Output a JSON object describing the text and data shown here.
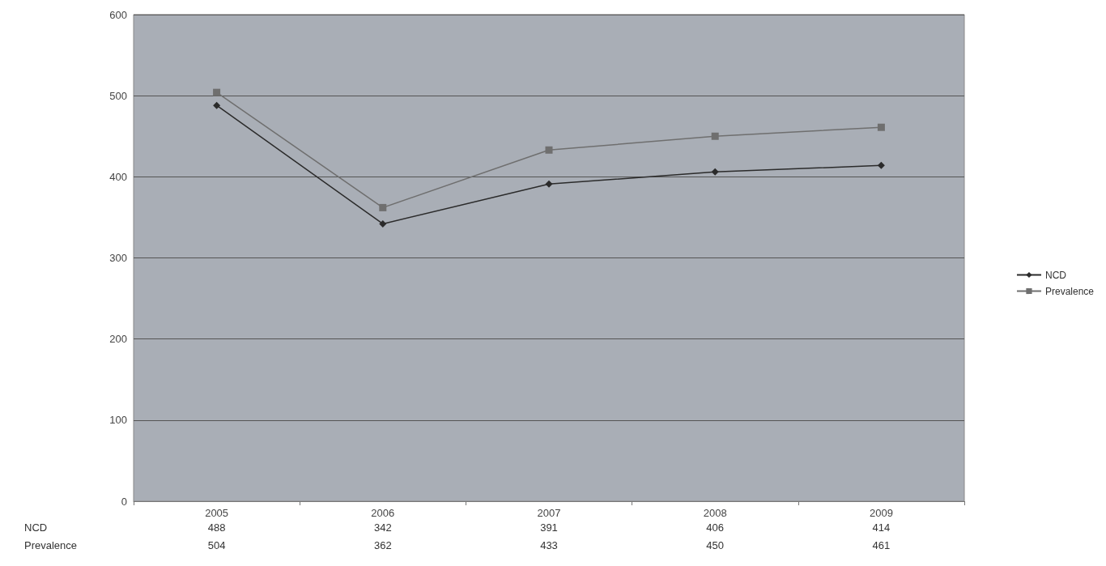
{
  "chart_data": {
    "type": "line",
    "categories": [
      "2005",
      "2006",
      "2007",
      "2008",
      "2009"
    ],
    "series": [
      {
        "name": "NCD",
        "color": "#2b2b2b",
        "marker": "diamond",
        "values": [
          488,
          342,
          391,
          406,
          414
        ]
      },
      {
        "name": "Prevalence",
        "color": "#6f6f6f",
        "marker": "square",
        "values": [
          504,
          362,
          433,
          450,
          461
        ]
      }
    ],
    "ylim": [
      0,
      600
    ],
    "yticks": [
      0,
      100,
      200,
      300,
      400,
      500,
      600
    ],
    "grid": "y",
    "legend": "right",
    "data_labels": true,
    "line_style": "solid"
  }
}
